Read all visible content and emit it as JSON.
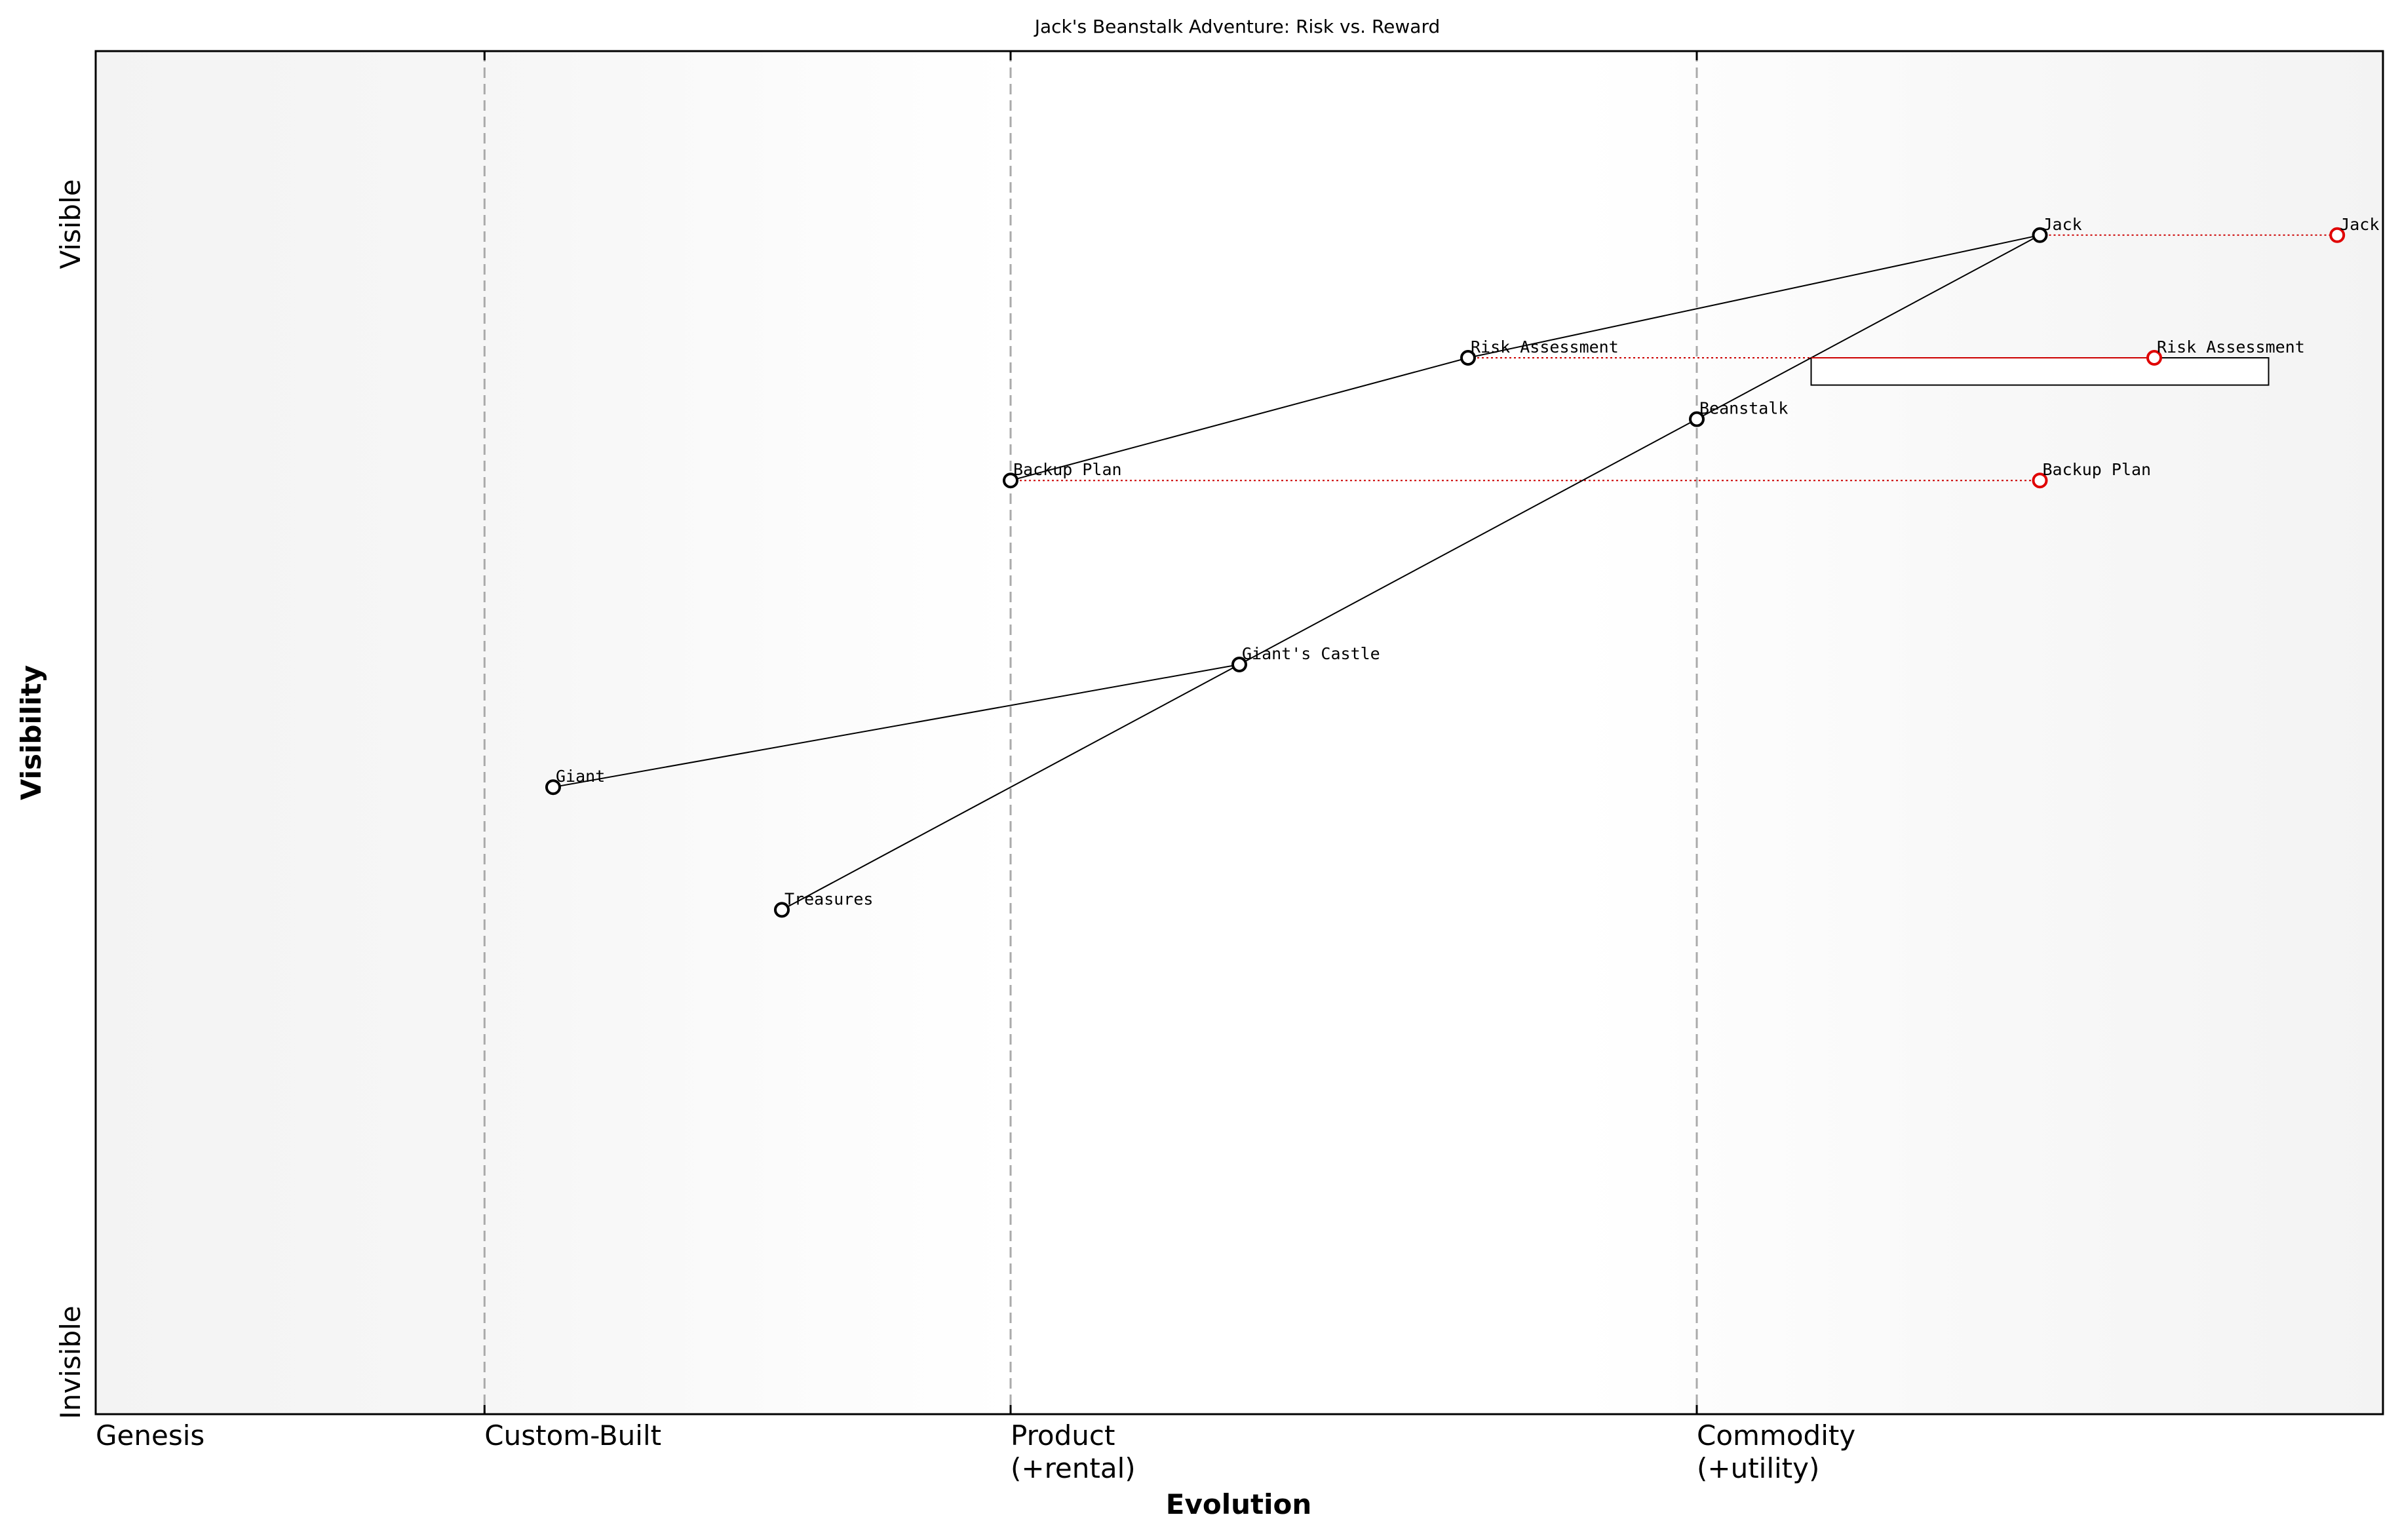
{
  "chart_data": {
    "type": "scatter",
    "title": "Jack's Beanstalk Adventure: Risk vs. Reward",
    "xlabel": "Evolution",
    "ylabel": "Visibility",
    "xlim": [
      0,
      1
    ],
    "ylim": [
      0,
      1
    ],
    "y_ticks": {
      "top": "Visible",
      "bottom": "Invisible"
    },
    "stages": [
      {
        "label": "Genesis",
        "x": 0.0,
        "divider": false
      },
      {
        "label": "Custom-Built",
        "x": 0.17,
        "divider": true
      },
      {
        "label": "Product\n(+rental)",
        "x": 0.4,
        "divider": true
      },
      {
        "label": "Commodity\n(+utility)",
        "x": 0.7,
        "divider": true
      }
    ],
    "components": [
      {
        "name": "Jack",
        "x": 0.85,
        "y": 0.865
      },
      {
        "name": "Risk Assessment",
        "x": 0.6,
        "y": 0.775
      },
      {
        "name": "Beanstalk",
        "x": 0.7,
        "y": 0.73
      },
      {
        "name": "Backup Plan",
        "x": 0.4,
        "y": 0.685
      },
      {
        "name": "Giant's Castle",
        "x": 0.5,
        "y": 0.55
      },
      {
        "name": "Giant",
        "x": 0.2,
        "y": 0.46
      },
      {
        "name": "Treasures",
        "x": 0.3,
        "y": 0.37
      }
    ],
    "links": [
      [
        "Jack",
        "Risk Assessment"
      ],
      [
        "Jack",
        "Beanstalk"
      ],
      [
        "Risk Assessment",
        "Backup Plan"
      ],
      [
        "Beanstalk",
        "Giant's Castle"
      ],
      [
        "Giant's Castle",
        "Giant"
      ],
      [
        "Giant's Castle",
        "Treasures"
      ]
    ],
    "evolved": [
      {
        "name": "Jack",
        "from_x": 0.85,
        "to_x": 0.98,
        "y": 0.865
      },
      {
        "name": "Risk Assessment",
        "from_x": 0.6,
        "to_x": 0.9,
        "y": 0.775
      },
      {
        "name": "Backup Plan",
        "from_x": 0.4,
        "to_x": 0.85,
        "y": 0.685
      }
    ],
    "annotation_box": {
      "x": [
        0.75,
        0.95
      ],
      "y": [
        0.755,
        0.775
      ]
    },
    "colors": {
      "component": "#000000",
      "evolved": "#e00000",
      "evolve_line": "#cc0000",
      "background_edge": "#f3f3f3",
      "background_center": "#ffffff",
      "divider": "#aaaaaa"
    }
  }
}
